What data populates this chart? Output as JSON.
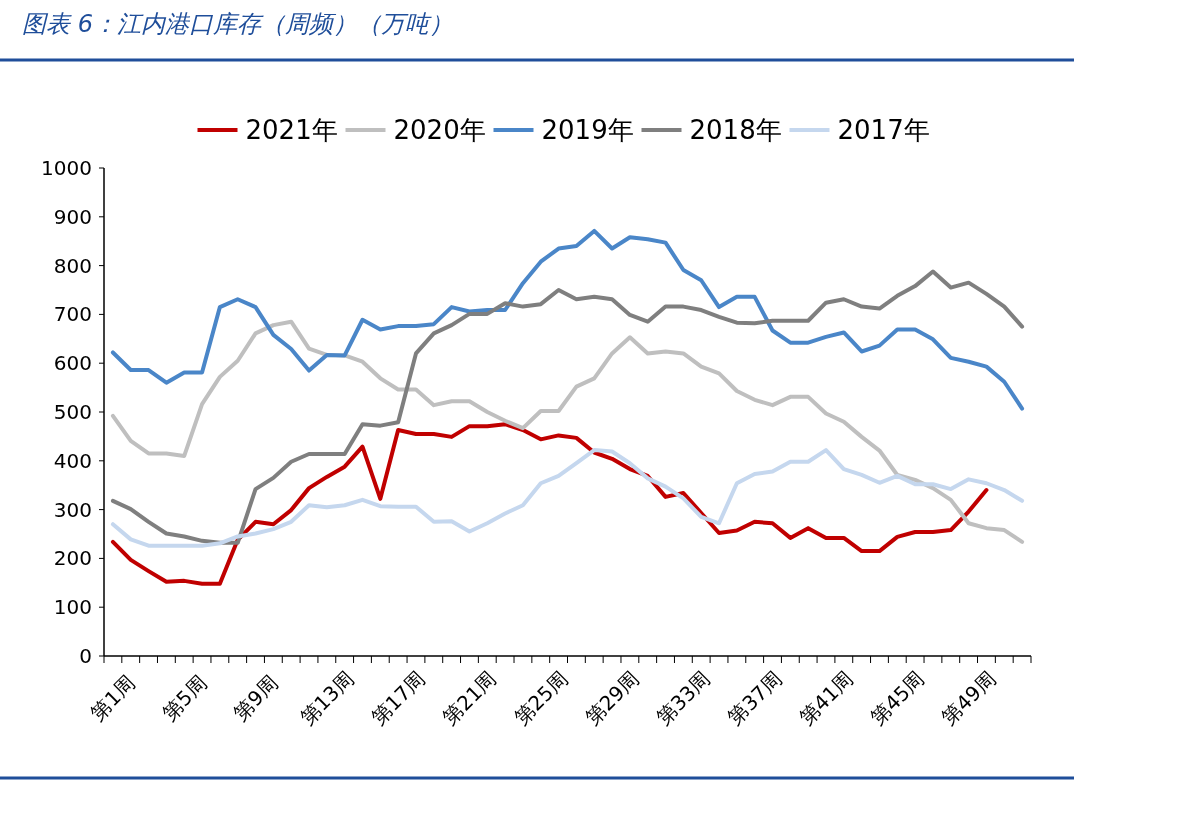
{
  "chart_data": {
    "type": "line",
    "title": "图表 6：江内港口库存（周频）（万吨）",
    "categories": [
      "第1周",
      null,
      null,
      null,
      "第5周",
      null,
      null,
      null,
      "第9周",
      null,
      null,
      null,
      "第13周",
      null,
      null,
      null,
      "第17周",
      null,
      null,
      null,
      "第21周",
      null,
      null,
      null,
      "第25周",
      null,
      null,
      null,
      "第29周",
      null,
      null,
      null,
      "第33周",
      null,
      null,
      null,
      "第37周",
      null,
      null,
      null,
      "第41周",
      null,
      null,
      null,
      "第45周",
      null,
      null,
      null,
      "第49周",
      null,
      null,
      null
    ],
    "ylim": [
      0,
      1000
    ],
    "yticks": [
      0,
      100,
      200,
      300,
      400,
      500,
      600,
      700,
      800,
      900,
      1000
    ],
    "grid": false,
    "legend": "top",
    "marker": "none",
    "line_style": "solid",
    "series": [
      {
        "name": "2021年",
        "color": "#c00000",
        "values": [
          234,
          197,
          174,
          152,
          154,
          148,
          148,
          238,
          275,
          270,
          299,
          344,
          367,
          388,
          429,
          322,
          463,
          455,
          455,
          449,
          471,
          471,
          475,
          463,
          444,
          452,
          447,
          417,
          404,
          383,
          369,
          326,
          334,
          293,
          252,
          257,
          275,
          272,
          242,
          262,
          242,
          242,
          215,
          215,
          244,
          254,
          254,
          258,
          296,
          340,
          null,
          null
        ]
      },
      {
        "name": "2020年",
        "color": "#bfbfbf",
        "values": [
          492,
          441,
          415,
          415,
          410,
          516,
          572,
          605,
          661,
          678,
          685,
          630,
          617,
          616,
          603,
          569,
          546,
          546,
          514,
          522,
          522,
          500,
          482,
          467,
          502,
          502,
          552,
          569,
          620,
          653,
          620,
          624,
          620,
          593,
          579,
          543,
          525,
          514,
          531,
          531,
          497,
          480,
          449,
          421,
          371,
          361,
          344,
          320,
          272,
          262,
          258,
          234
        ]
      },
      {
        "name": "2019年",
        "color": "#4a86c8",
        "values": [
          622,
          586,
          586,
          560,
          581,
          581,
          715,
          731,
          715,
          658,
          629,
          585,
          617,
          616,
          689,
          669,
          676,
          676,
          680,
          715,
          706,
          709,
          709,
          764,
          808,
          835,
          840,
          871,
          835,
          858,
          854,
          847,
          791,
          770,
          715,
          736,
          736,
          667,
          642,
          642,
          654,
          663,
          624,
          636,
          669,
          669,
          649,
          611,
          603,
          593,
          562,
          507
        ]
      },
      {
        "name": "2018年",
        "color": "#7f7f7f",
        "values": [
          318,
          301,
          275,
          251,
          245,
          236,
          232,
          232,
          342,
          365,
          398,
          414,
          414,
          414,
          475,
          472,
          479,
          620,
          661,
          678,
          701,
          701,
          723,
          716,
          721,
          750,
          731,
          736,
          731,
          699,
          685,
          716,
          716,
          709,
          695,
          683,
          682,
          687,
          687,
          687,
          724,
          731,
          716,
          712,
          738,
          758,
          788,
          755,
          765,
          742,
          716,
          675
        ]
      },
      {
        "name": "2017年",
        "color": "#c5d7ee",
        "values": [
          270,
          239,
          226,
          226,
          226,
          226,
          231,
          245,
          251,
          260,
          275,
          309,
          305,
          309,
          320,
          307,
          306,
          306,
          275,
          276,
          255,
          272,
          292,
          309,
          354,
          369,
          395,
          422,
          419,
          395,
          364,
          347,
          323,
          285,
          272,
          354,
          373,
          378,
          398,
          398,
          422,
          383,
          371,
          355,
          369,
          352,
          352,
          342,
          362,
          354,
          340,
          318
        ]
      }
    ]
  }
}
